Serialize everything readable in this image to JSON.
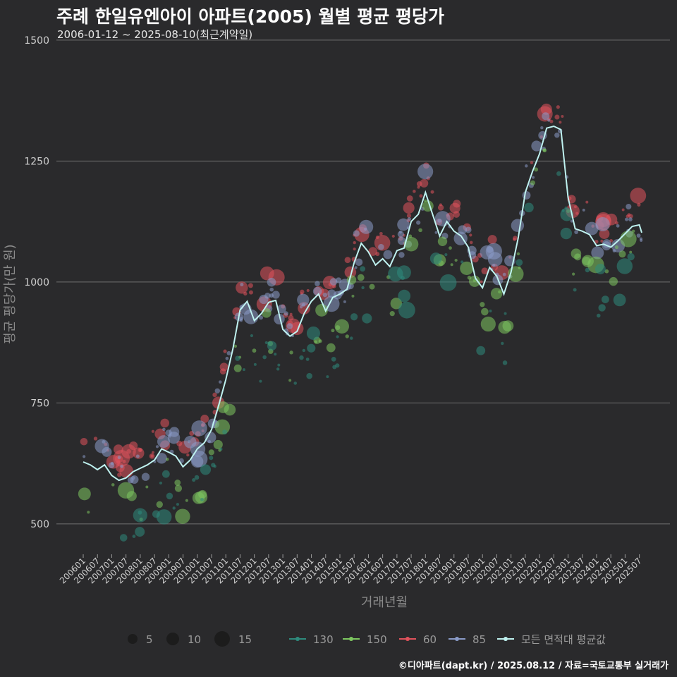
{
  "header": {
    "title": "주례 한일유엔아이 아파트(2005) 월별 평균 평당가",
    "subtitle": "2006-01-12 ~ 2025-08-10(최근계약일)"
  },
  "caption": "©디아파트(dapt.kr) / 2025.08.12 / 자료=국토교통부 실거래가",
  "colors": {
    "background": "#2a2a2c",
    "grid": "#6f6f6f",
    "series_130": "#2e8b7d",
    "series_150": "#7dc760",
    "series_60": "#e0525c",
    "series_85": "#8a9bc8",
    "series_avg": "#bff2f0"
  },
  "chart_data": {
    "type": "scatter",
    "title": "주례 한일유엔아이 아파트(2005) 월별 평균 평당가",
    "xlabel": "거래년월",
    "ylabel": "평균 평당가(만 원)",
    "ylim": [
      440,
      1510
    ],
    "yticks": [
      500,
      750,
      1000,
      1250,
      1500
    ],
    "x_range": [
      "2006-01",
      "2025-08"
    ],
    "xtick_labels": [
      "200601",
      "200607",
      "200701",
      "200707",
      "200801",
      "200807",
      "200901",
      "200907",
      "201001",
      "201007",
      "201101",
      "201107",
      "201201",
      "201207",
      "201301",
      "201307",
      "201401",
      "201407",
      "201501",
      "201507",
      "201601",
      "201607",
      "201701",
      "201707",
      "201801",
      "201807",
      "201901",
      "201907",
      "202001",
      "202007",
      "202101",
      "202107",
      "202201",
      "202207",
      "202301",
      "202307",
      "202401",
      "202407",
      "202501",
      "202507"
    ],
    "grid": "horizontal",
    "legend_position": "bottom",
    "size_legend": {
      "values": [
        5,
        10,
        15
      ],
      "labels": [
        "5",
        "10",
        "15"
      ]
    },
    "series": [
      {
        "name": "130",
        "key": "series_130"
      },
      {
        "name": "150",
        "key": "series_150"
      },
      {
        "name": "60",
        "key": "series_60"
      },
      {
        "name": "85",
        "key": "series_85"
      },
      {
        "name": "모든 면적대 평균값",
        "key": "series_avg"
      }
    ],
    "average_line": [
      [
        "2006-01",
        628
      ],
      [
        "2006-04",
        622
      ],
      [
        "2006-07",
        612
      ],
      [
        "2006-10",
        622
      ],
      [
        "2007-01",
        600
      ],
      [
        "2007-04",
        590
      ],
      [
        "2007-07",
        595
      ],
      [
        "2007-10",
        608
      ],
      [
        "2008-01",
        615
      ],
      [
        "2008-04",
        622
      ],
      [
        "2008-07",
        632
      ],
      [
        "2008-10",
        655
      ],
      [
        "2009-01",
        648
      ],
      [
        "2009-04",
        640
      ],
      [
        "2009-07",
        618
      ],
      [
        "2009-10",
        632
      ],
      [
        "2010-01",
        655
      ],
      [
        "2010-04",
        668
      ],
      [
        "2010-07",
        695
      ],
      [
        "2010-10",
        745
      ],
      [
        "2011-01",
        798
      ],
      [
        "2011-04",
        862
      ],
      [
        "2011-07",
        942
      ],
      [
        "2011-10",
        960
      ],
      [
        "2012-01",
        920
      ],
      [
        "2012-04",
        935
      ],
      [
        "2012-07",
        958
      ],
      [
        "2012-10",
        962
      ],
      [
        "2013-01",
        902
      ],
      [
        "2013-04",
        888
      ],
      [
        "2013-07",
        898
      ],
      [
        "2013-10",
        935
      ],
      [
        "2014-01",
        960
      ],
      [
        "2014-04",
        975
      ],
      [
        "2014-07",
        940
      ],
      [
        "2014-10",
        968
      ],
      [
        "2015-01",
        975
      ],
      [
        "2015-04",
        985
      ],
      [
        "2015-07",
        1040
      ],
      [
        "2015-10",
        1080
      ],
      [
        "2016-01",
        1062
      ],
      [
        "2016-04",
        1035
      ],
      [
        "2016-07",
        1048
      ],
      [
        "2016-10",
        1032
      ],
      [
        "2017-01",
        1065
      ],
      [
        "2017-04",
        1070
      ],
      [
        "2017-07",
        1125
      ],
      [
        "2017-10",
        1140
      ],
      [
        "2018-01",
        1185
      ],
      [
        "2018-04",
        1140
      ],
      [
        "2018-07",
        1095
      ],
      [
        "2018-10",
        1125
      ],
      [
        "2019-01",
        1105
      ],
      [
        "2019-04",
        1095
      ],
      [
        "2019-07",
        1072
      ],
      [
        "2019-10",
        1008
      ],
      [
        "2020-01",
        988
      ],
      [
        "2020-04",
        1030
      ],
      [
        "2020-07",
        1012
      ],
      [
        "2020-10",
        975
      ],
      [
        "2021-01",
        1020
      ],
      [
        "2021-04",
        1090
      ],
      [
        "2021-07",
        1185
      ],
      [
        "2021-10",
        1228
      ],
      [
        "2022-01",
        1265
      ],
      [
        "2022-04",
        1318
      ],
      [
        "2022-07",
        1322
      ],
      [
        "2022-10",
        1315
      ],
      [
        "2023-01",
        1175
      ],
      [
        "2023-04",
        1110
      ],
      [
        "2023-07",
        1105
      ],
      [
        "2023-10",
        1098
      ],
      [
        "2024-01",
        1075
      ],
      [
        "2024-04",
        1078
      ],
      [
        "2024-07",
        1072
      ],
      [
        "2024-10",
        1085
      ],
      [
        "2025-01",
        1100
      ],
      [
        "2025-04",
        1115
      ],
      [
        "2025-07",
        1118
      ],
      [
        "2025-08",
        1102
      ]
    ]
  }
}
